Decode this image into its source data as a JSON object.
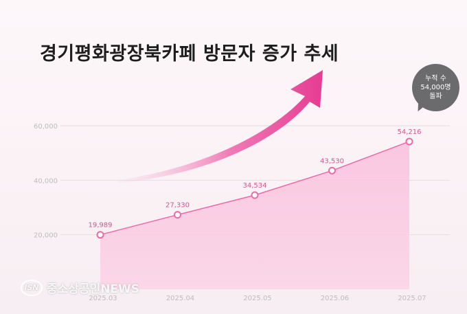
{
  "title": "경기평화광장북카페  방문자 증가 추세",
  "badge": {
    "line1": "누적 수",
    "line2": "54,000명",
    "line3": "돌파"
  },
  "watermark": {
    "logo": "ISN",
    "text": "중소상공인NEWS"
  },
  "colors": {
    "line": "#ec6aa8",
    "marker_fill": "#ffffff",
    "area_top": "#f9c0dc",
    "area_bottom": "#fbd6e8",
    "arrow_dark": "#e63c92",
    "arrow_light": "#f7cfe3",
    "tick_text": "#bcbcbc",
    "label_text": "#d0558f",
    "grid": "#e3dde0"
  },
  "chart_data": {
    "type": "area",
    "categories": [
      "2025.03",
      "2025.04",
      "2025.05",
      "2025.06",
      "2025.07"
    ],
    "values": [
      19989,
      27330,
      34534,
      43530,
      54216
    ],
    "value_labels": [
      "19,989",
      "27,330",
      "34,534",
      "43,530",
      "54,216"
    ],
    "yticks": [
      20000,
      40000,
      60000
    ],
    "ytick_labels": [
      "20,000",
      "40,000",
      "60,000"
    ],
    "ylim": [
      0,
      60000
    ],
    "grid": true,
    "legend": "none",
    "xlabel": "",
    "ylabel": ""
  }
}
